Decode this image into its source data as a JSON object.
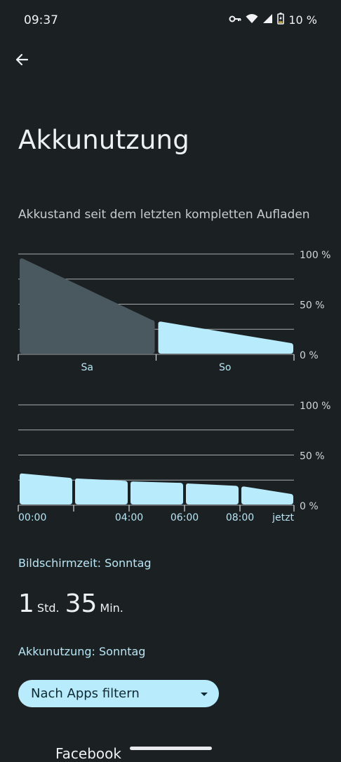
{
  "status_bar": {
    "time": "09:37",
    "battery_percent": "10 %",
    "icons": [
      "vpn-key-icon",
      "wifi-icon",
      "cell-signal-icon",
      "battery-charging-icon"
    ]
  },
  "header": {
    "back_icon": "arrow-left-icon",
    "title": "Akkunutzung"
  },
  "battery_section": {
    "subtitle": "Akkustand seit dem letzten kompletten Aufladen"
  },
  "chart_data": [
    {
      "type": "area",
      "title": "",
      "y_ticks": [
        "100 %",
        "50 %",
        "0 %"
      ],
      "ylim": [
        0,
        100
      ],
      "categories": [
        "Sa",
        "So"
      ],
      "series": [
        {
          "values": [
            96,
            34
          ],
          "highlighted": false,
          "color": "#4a5960"
        },
        {
          "values": [
            33,
            11
          ],
          "highlighted": true,
          "color": "#b8ecfd"
        }
      ],
      "grid": true
    },
    {
      "type": "area",
      "title": "",
      "y_ticks": [
        "100 %",
        "50 %",
        "0 %"
      ],
      "ylim": [
        0,
        100
      ],
      "x_ticks": [
        "00:00",
        "04:00",
        "06:00",
        "08:00",
        "jetzt"
      ],
      "segments": [
        {
          "start": 32,
          "end": 27
        },
        {
          "start": 27,
          "end": 24
        },
        {
          "start": 24,
          "end": 22
        },
        {
          "start": 22,
          "end": 19
        },
        {
          "start": 19,
          "end": 11
        }
      ],
      "grid": true
    }
  ],
  "screen_time": {
    "label": "Bildschirmzeit: Sonntag",
    "hours": "1",
    "hours_unit": "Std.",
    "minutes": "35",
    "minutes_unit": "Min."
  },
  "usage": {
    "label": "Akkunutzung: Sonntag"
  },
  "filter": {
    "label": "Nach Apps filtern",
    "icon": "dropdown-arrow-icon"
  },
  "app_list": {
    "first_app": "Facebook"
  },
  "colors": {
    "background": "#1b2023",
    "accent": "#b8ecfd",
    "inactive_area": "#4a5960"
  }
}
